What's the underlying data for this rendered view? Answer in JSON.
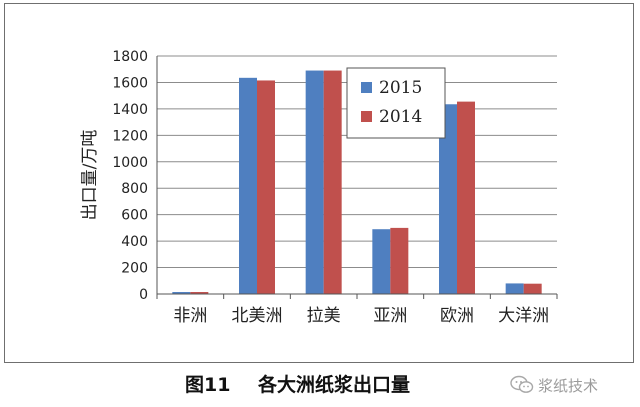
{
  "chart_data": {
    "type": "bar",
    "categories": [
      "非洲",
      "北美洲",
      "拉美",
      "亚洲",
      "欧洲",
      "大洋洲"
    ],
    "series": [
      {
        "name": "2015",
        "color": "#4f7fc0",
        "values": [
          15,
          1635,
          1690,
          490,
          1435,
          80
        ]
      },
      {
        "name": "2014",
        "color": "#c0504d",
        "values": [
          15,
          1615,
          1690,
          500,
          1455,
          78
        ]
      }
    ],
    "ylabel": "出口量/万吨",
    "xlabel": "",
    "ylim": [
      0,
      1800
    ],
    "yticks": [
      0,
      200,
      400,
      600,
      800,
      1000,
      1200,
      1400,
      1600,
      1800
    ],
    "grid": true,
    "legend_position": "top-right"
  },
  "caption": {
    "number": "图11",
    "title": "各大洲纸浆出口量"
  },
  "watermark": {
    "text": "浆纸技术",
    "icon": "wechat-icon"
  }
}
